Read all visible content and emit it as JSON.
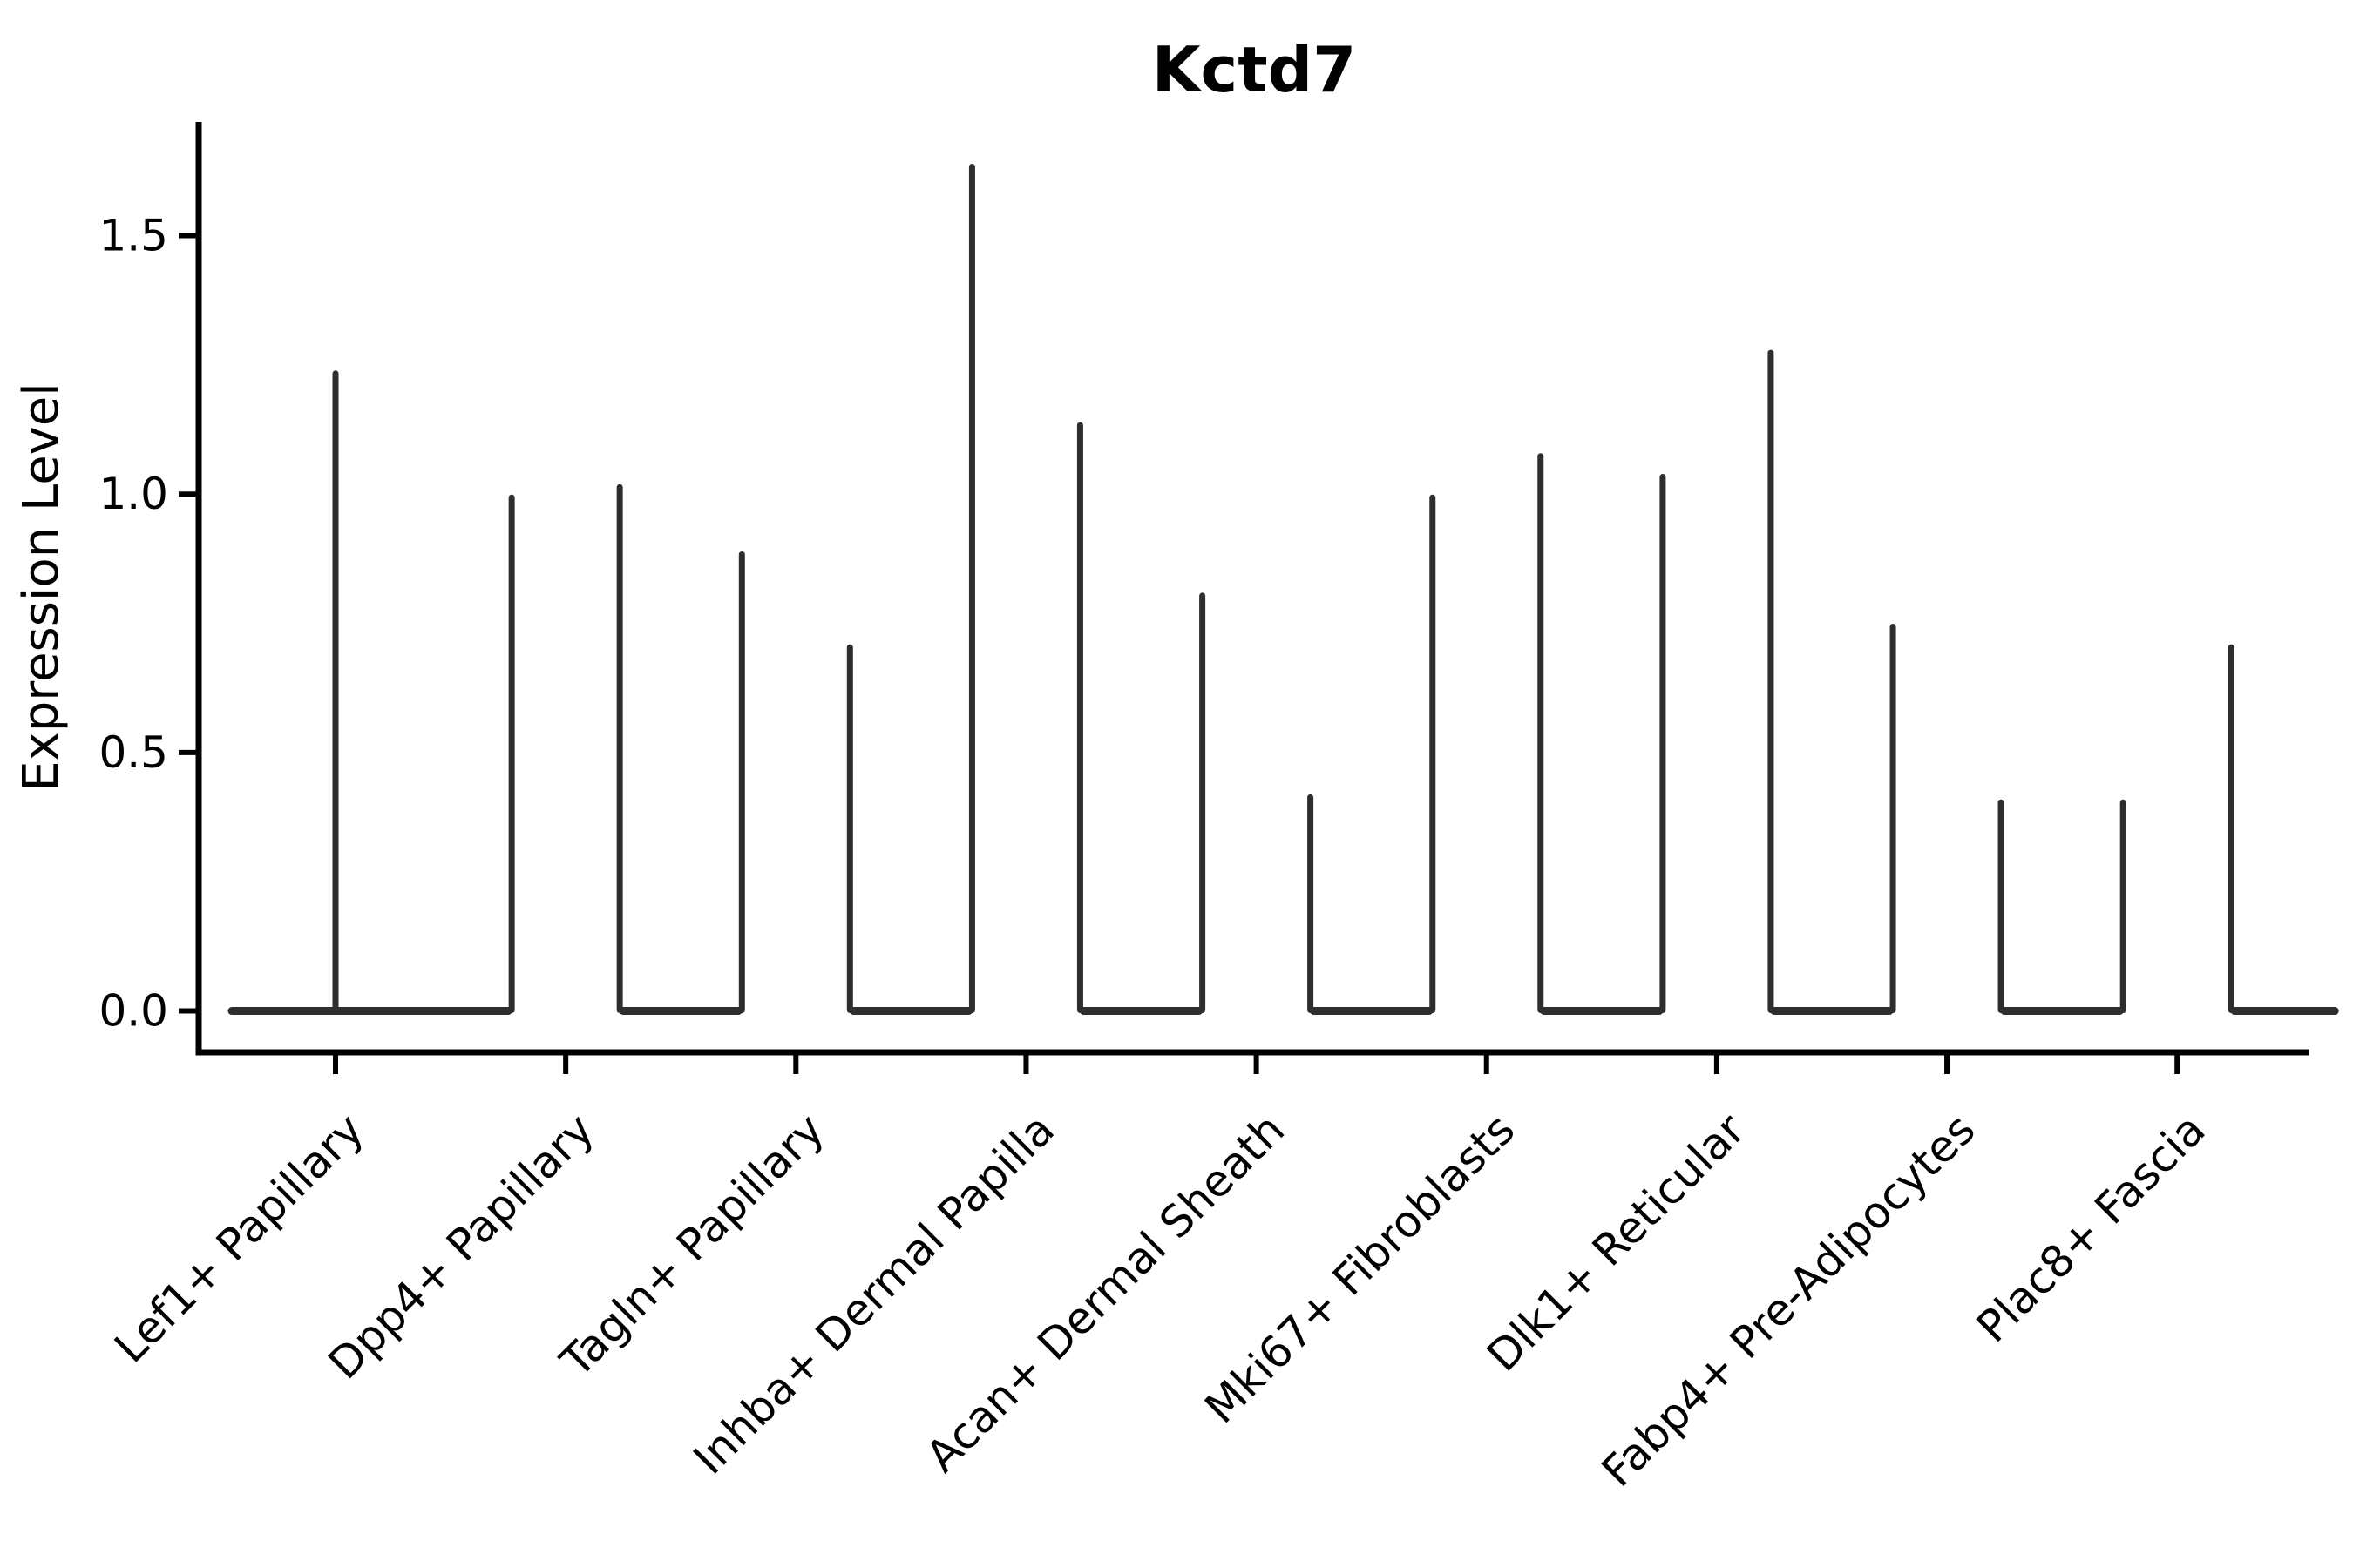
{
  "page": {
    "background": "#ffffff"
  },
  "chart_data": {
    "type": "violin",
    "title": "Kctd7",
    "xlabel": "",
    "ylabel": "Expression Level",
    "ylim": [
      -0.08,
      1.72
    ],
    "ytick_labels": [
      "0.0",
      "0.5",
      "1.0",
      "1.5"
    ],
    "ytick_values": [
      0.0,
      0.5,
      1.0,
      1.5
    ],
    "grid": false,
    "legend": "none",
    "violin_shape": "flat-zero-base-with-thin-spike-to-max",
    "colors": {
      "violin": "#2e2e2e",
      "axis": "#000000",
      "text": "#000000"
    },
    "categories": [
      {
        "label": "Lef1+ Papillary",
        "violin_max_values": [
          1.24
        ]
      },
      {
        "label": "Dpp4+ Papillary",
        "violin_max_values": [
          1.0,
          1.02
        ]
      },
      {
        "label": "Tagln+ Papillary",
        "violin_max_values": [
          0.89,
          0.71
        ]
      },
      {
        "label": "Inhba+ Dermal Papilla",
        "violin_max_values": [
          1.64,
          1.14
        ]
      },
      {
        "label": "Acan+ Dermal Sheath",
        "violin_max_values": [
          0.81,
          0.42
        ]
      },
      {
        "label": "Mki67+ Fibroblasts",
        "violin_max_values": [
          1.0,
          1.08
        ]
      },
      {
        "label": "Dlk1+ Reticular",
        "violin_max_values": [
          1.04,
          1.28
        ]
      },
      {
        "label": "Fabp4+ Pre-Adipocytes",
        "violin_max_values": [
          0.75,
          0.41
        ]
      },
      {
        "label": "Plac8+ Fascia",
        "violin_max_values": [
          0.41,
          0.71
        ]
      }
    ]
  }
}
